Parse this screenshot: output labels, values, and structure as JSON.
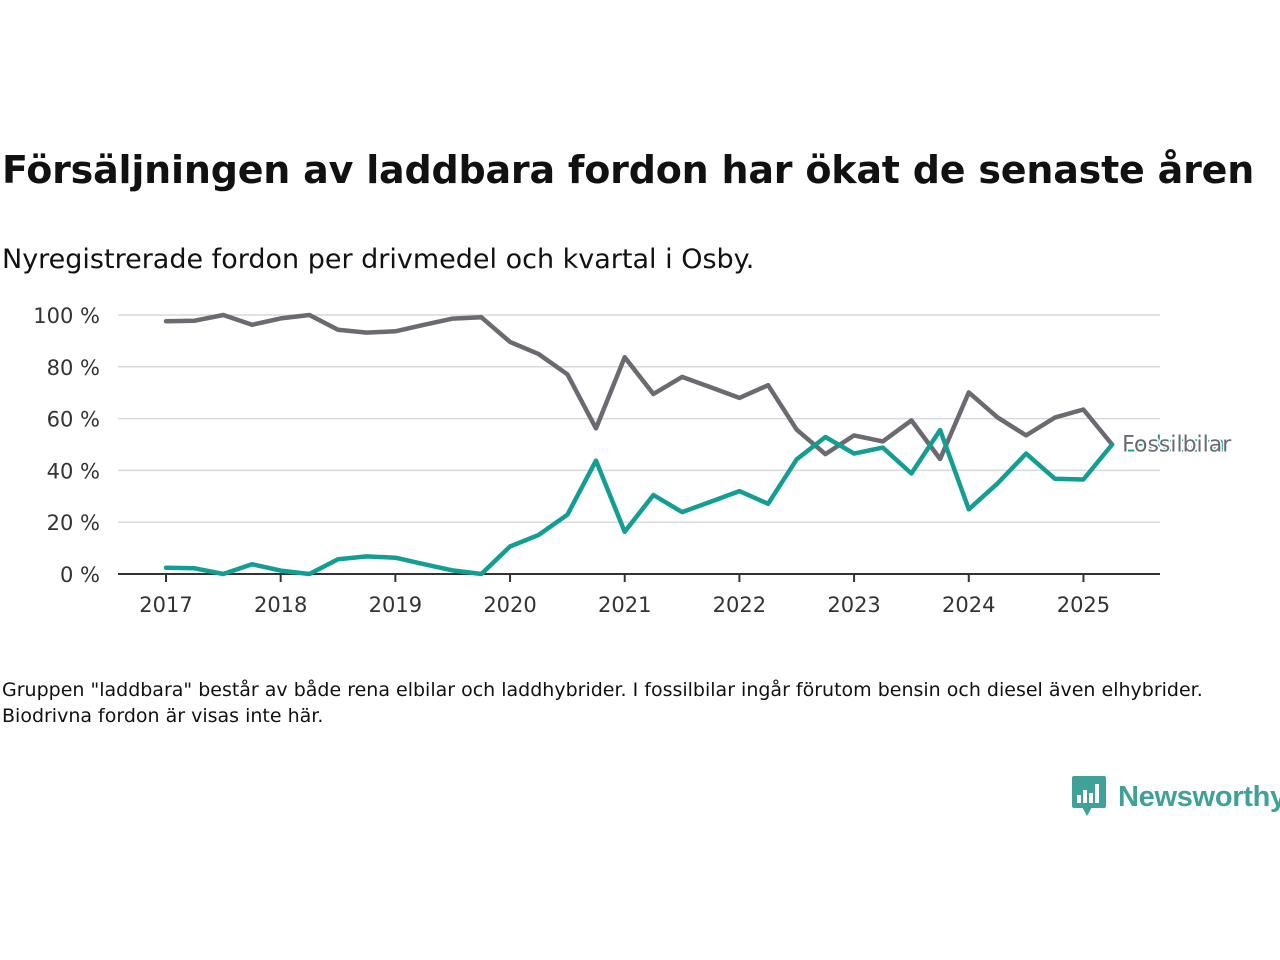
{
  "header": {
    "title": "Försäljningen av laddbara fordon har ökat de senaste åren",
    "subtitle": "Nyregistrerade fordon per drivmedel och kvartal i Osby."
  },
  "footnote": "Gruppen \"laddbara\" består av både rena elbilar och laddhybrider. I fossilbilar ingår förutom bensin och diesel även elhybrider. Biodrivna fordon är visas inte här.",
  "brand": {
    "name": "Newsworthy",
    "icon": "newsworthy-logo-icon",
    "color": "#3fa197"
  },
  "chart_data": {
    "type": "line",
    "title": "Försäljningen av laddbara fordon har ökat de senaste åren",
    "subtitle": "Nyregistrerade fordon per drivmedel och kvartal i Osby.",
    "xlabel": "",
    "ylabel": "",
    "ylim": [
      0,
      100
    ],
    "yticks": [
      "0 %",
      "20 %",
      "40 %",
      "60 %",
      "80 %",
      "100 %"
    ],
    "yticks_values": [
      0,
      20,
      40,
      60,
      80,
      100
    ],
    "xticks": [
      "2017",
      "2018",
      "2019",
      "2020",
      "2021",
      "2022",
      "2023",
      "2024",
      "2025"
    ],
    "grid": true,
    "x": [
      "2017-Q1",
      "2017-Q2",
      "2017-Q3",
      "2017-Q4",
      "2018-Q1",
      "2018-Q2",
      "2018-Q3",
      "2018-Q4",
      "2019-Q1",
      "2019-Q2",
      "2019-Q3",
      "2019-Q4",
      "2020-Q1",
      "2020-Q2",
      "2020-Q3",
      "2020-Q4",
      "2021-Q1",
      "2021-Q2",
      "2021-Q3",
      "2021-Q4",
      "2022-Q1",
      "2022-Q2",
      "2022-Q3",
      "2022-Q4",
      "2023-Q1",
      "2023-Q2",
      "2023-Q3",
      "2023-Q4",
      "2024-Q1",
      "2024-Q2",
      "2024-Q3",
      "2024-Q4",
      "2025-Q1",
      "2025-Q2"
    ],
    "series": [
      {
        "name": "Fossilbilar",
        "color": "#6b6a70",
        "values": [
          97.6,
          97.8,
          100,
          96.2,
          98.7,
          100,
          94.3,
          93.2,
          93.7,
          96.2,
          98.6,
          99.1,
          89.6,
          84.9,
          77.1,
          56.2,
          83.7,
          69.5,
          76.1,
          72.1,
          68.0,
          72.9,
          55.7,
          46.3,
          53.5,
          51.2,
          59.3,
          44.4,
          70.1,
          60.5,
          53.5,
          60.4,
          63.5,
          50.0
        ]
      },
      {
        "name": "Laddbara",
        "color": "#139e93",
        "values": [
          2.4,
          2.2,
          0,
          3.8,
          1.3,
          0,
          5.7,
          6.8,
          6.3,
          3.8,
          1.4,
          0,
          10.6,
          15.1,
          22.9,
          43.8,
          16.3,
          30.5,
          23.9,
          27.9,
          32.0,
          27.1,
          44.3,
          52.9,
          46.5,
          48.8,
          38.8,
          55.6,
          25.0,
          34.9,
          46.5,
          36.8,
          36.5,
          50.0
        ]
      }
    ]
  }
}
